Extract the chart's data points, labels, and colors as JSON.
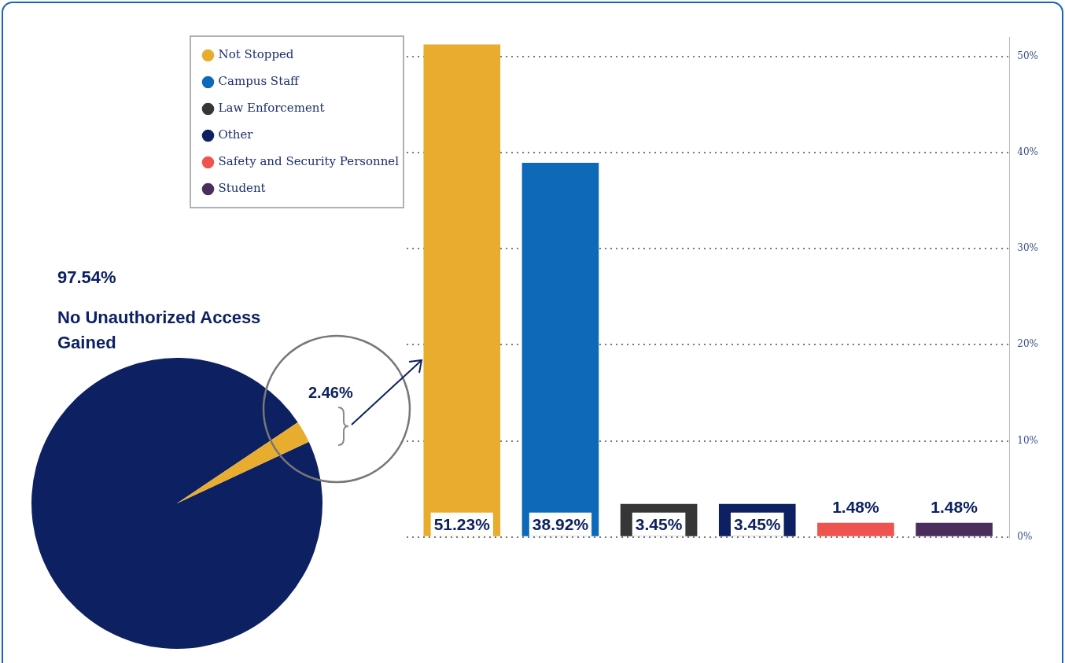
{
  "chart_data": [
    {
      "type": "pie",
      "categories": [
        "No Unauthorized Access Gained",
        null
      ],
      "values": [
        97.54,
        2.46
      ],
      "colors": [
        "#0d2162",
        "#e8ac2e"
      ],
      "value_labels": [
        "97.54%",
        "2.46%"
      ]
    },
    {
      "type": "bar",
      "categories": [
        null
      ],
      "series": [
        {
          "name": "Not Stopped",
          "color": "#e8ac2e",
          "values": [
            51.23
          ],
          "value_labels": [
            "51.23%"
          ]
        },
        {
          "name": "Campus Staff",
          "color": "#0e6ab8",
          "values": [
            38.92
          ],
          "value_labels": [
            "38.92%"
          ]
        },
        {
          "name": "Law Enforcement",
          "color": "#363636",
          "values": [
            3.45
          ],
          "value_labels": [
            "3.45%"
          ]
        },
        {
          "name": "Other",
          "color": "#0d2162",
          "values": [
            3.45
          ],
          "value_labels": [
            "3.45%"
          ]
        },
        {
          "name": "Safety and Security Personnel",
          "color": "#ef5350",
          "values": [
            1.48
          ],
          "value_labels": [
            "1.48%"
          ]
        },
        {
          "name": "Student",
          "color": "#4b2e5e",
          "values": [
            1.48
          ],
          "value_labels": [
            "1.48%"
          ]
        }
      ],
      "ylim": [
        0,
        52
      ],
      "yticks": [
        {
          "value": 0,
          "label": "0%"
        },
        {
          "value": 10,
          "label": "10%"
        },
        {
          "value": 20,
          "label": "20%"
        },
        {
          "value": 30,
          "label": "30%"
        },
        {
          "value": 40,
          "label": "40%"
        },
        {
          "value": 50,
          "label": "50%"
        }
      ],
      "grid": "y",
      "legend": "top left",
      "tick_labels": "y"
    }
  ]
}
